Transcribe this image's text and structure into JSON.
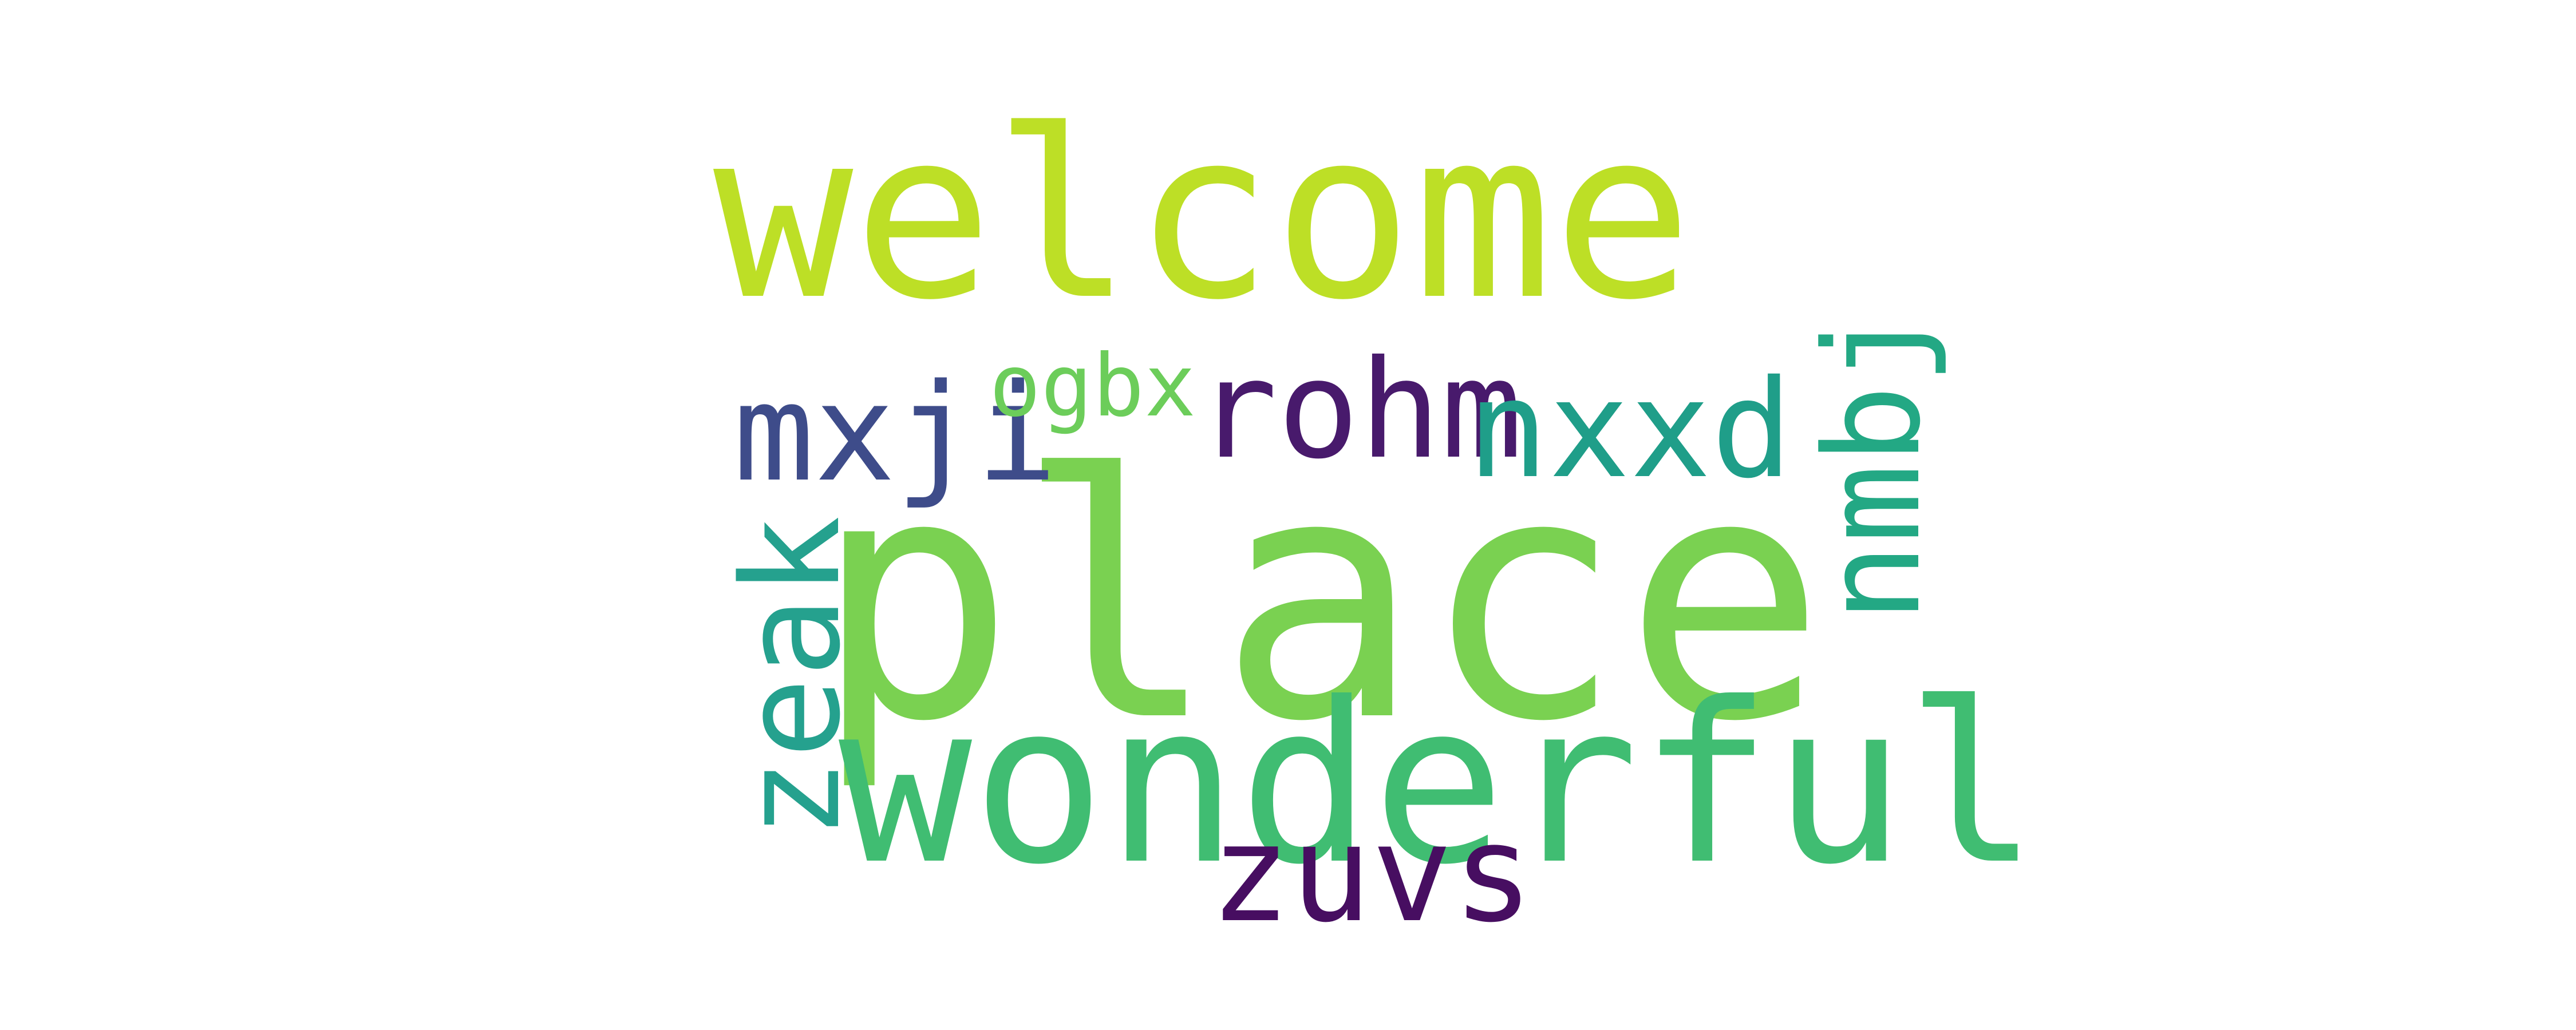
{
  "words": [
    {
      "text": "welcome",
      "color": "#bddf26",
      "orientation": "horizontal"
    },
    {
      "text": "place",
      "color": "#7ad151",
      "orientation": "horizontal"
    },
    {
      "text": "wonderful",
      "color": "#40bd72",
      "orientation": "horizontal"
    },
    {
      "text": "mxji",
      "color": "#3e4c8a",
      "orientation": "horizontal"
    },
    {
      "text": "ogbx",
      "color": "#6ccd5a",
      "orientation": "horizontal"
    },
    {
      "text": "rohm",
      "color": "#481a6c",
      "orientation": "horizontal"
    },
    {
      "text": "nxxd",
      "color": "#1f9e89",
      "orientation": "horizontal"
    },
    {
      "text": "nmbj",
      "color": "#23a884",
      "orientation": "vertical"
    },
    {
      "text": "zeak",
      "color": "#25a18e",
      "orientation": "vertical"
    },
    {
      "text": "zuvs",
      "color": "#470e61",
      "orientation": "horizontal"
    }
  ]
}
